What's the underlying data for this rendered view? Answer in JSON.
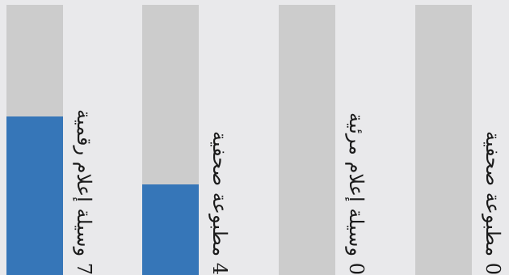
{
  "chart_data": {
    "type": "bar",
    "orientation": "vertical-bars-with-rotated-labels",
    "categories": [
      "7 وسيلة إعلام رقمية",
      "4 مطبوعة صحفية",
      "0 وسيلة إعلام مرئية",
      "0 مطبوعة صحفية"
    ],
    "values": [
      7,
      4,
      0,
      0
    ],
    "ylim": [
      0,
      11.9
    ],
    "grid": false,
    "legend": "none"
  },
  "colors": {
    "background": "#e9e9eb",
    "track": "#cccccc",
    "bar": "#3676b8"
  }
}
